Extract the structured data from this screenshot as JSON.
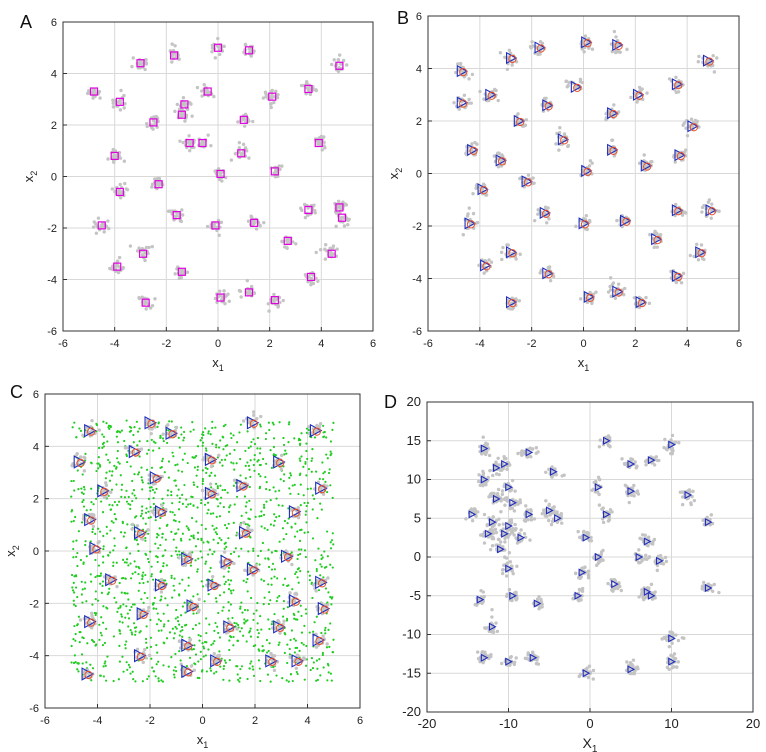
{
  "figure": {
    "panels": [
      {
        "letter": "A"
      },
      {
        "letter": "B"
      },
      {
        "letter": "C"
      },
      {
        "letter": "D"
      }
    ]
  },
  "colors": {
    "cloud": "#c4c4c4",
    "grid": "#d9d9d9",
    "square": "#e000e0",
    "triangle": "#1f2dbf",
    "circle": "#e8502a",
    "uniform": "#22cc22"
  },
  "chart_data": [
    {
      "type": "scatter",
      "panel": "A",
      "xlabel": "x1",
      "ylabel": "x2",
      "xlim": [
        -6,
        6
      ],
      "ylim": [
        -6,
        6
      ],
      "xticks": [
        -6,
        -4,
        -2,
        0,
        2,
        4,
        6
      ],
      "yticks": [
        -6,
        -4,
        -2,
        0,
        2,
        4,
        6
      ],
      "grid": true,
      "centers": [
        [
          -4.8,
          3.3
        ],
        [
          -3,
          4.4
        ],
        [
          -1.7,
          4.7
        ],
        [
          0,
          5
        ],
        [
          1.2,
          4.9
        ],
        [
          4.7,
          4.3
        ],
        [
          -3.8,
          2.9
        ],
        [
          -1.3,
          2.8
        ],
        [
          -0.4,
          3.3
        ],
        [
          2.1,
          3.1
        ],
        [
          3.5,
          3.4
        ],
        [
          -2.5,
          2.1
        ],
        [
          -1.4,
          2.4
        ],
        [
          1.0,
          2.2
        ],
        [
          -4.0,
          0.8
        ],
        [
          -1.1,
          1.3
        ],
        [
          -0.6,
          1.3
        ],
        [
          0.9,
          0.9
        ],
        [
          3.9,
          1.3
        ],
        [
          -3.8,
          -0.6
        ],
        [
          -2.3,
          -0.3
        ],
        [
          0.1,
          0.1
        ],
        [
          2.2,
          0.2
        ],
        [
          -1.6,
          -1.5
        ],
        [
          -0.1,
          -1.9
        ],
        [
          1.4,
          -1.8
        ],
        [
          3.5,
          -1.3
        ],
        [
          -4.5,
          -1.9
        ],
        [
          2.7,
          -2.5
        ],
        [
          4.8,
          -1.6
        ],
        [
          4.7,
          -1.2
        ],
        [
          -3.9,
          -3.5
        ],
        [
          -2.9,
          -3
        ],
        [
          -1.4,
          -3.7
        ],
        [
          3.6,
          -3.9
        ],
        [
          4.4,
          -3
        ],
        [
          -2.8,
          -4.9
        ],
        [
          0.1,
          -4.7
        ],
        [
          1.2,
          -4.5
        ],
        [
          2.2,
          -4.8
        ]
      ],
      "markers": [
        {
          "shape": "square",
          "positions": "centers"
        }
      ]
    },
    {
      "type": "scatter",
      "panel": "B",
      "xlabel": "x1",
      "ylabel": "x2",
      "xlim": [
        -6,
        6
      ],
      "ylim": [
        -6,
        6
      ],
      "xticks": [
        -6,
        -4,
        -2,
        0,
        2,
        4,
        6
      ],
      "yticks": [
        -6,
        -4,
        -2,
        0,
        2,
        4,
        6
      ],
      "grid": true,
      "centers": [
        [
          -4.7,
          3.9
        ],
        [
          -2.8,
          4.4
        ],
        [
          -1.7,
          4.8
        ],
        [
          0.1,
          5
        ],
        [
          1.3,
          4.9
        ],
        [
          4.8,
          4.3
        ],
        [
          -4.7,
          2.7
        ],
        [
          -3.6,
          3.0
        ],
        [
          -1.4,
          2.6
        ],
        [
          -0.3,
          3.3
        ],
        [
          2.1,
          3.0
        ],
        [
          3.6,
          3.4
        ],
        [
          -2.5,
          2.0
        ],
        [
          1.1,
          2.3
        ],
        [
          -4.3,
          0.9
        ],
        [
          -3.2,
          0.5
        ],
        [
          -0.8,
          1.3
        ],
        [
          1.1,
          0.9
        ],
        [
          4.2,
          1.8
        ],
        [
          -3.9,
          -0.6
        ],
        [
          -2.2,
          -0.3
        ],
        [
          0.1,
          0.1
        ],
        [
          2.4,
          0.3
        ],
        [
          3.7,
          0.7
        ],
        [
          -1.5,
          -1.5
        ],
        [
          0.0,
          -1.9
        ],
        [
          1.6,
          -1.8
        ],
        [
          3.6,
          -1.4
        ],
        [
          4.9,
          -1.4
        ],
        [
          -4.4,
          -1.9
        ],
        [
          2.8,
          -2.5
        ],
        [
          -3.8,
          -3.5
        ],
        [
          -2.8,
          -3.0
        ],
        [
          -1.4,
          -3.8
        ],
        [
          3.6,
          -3.9
        ],
        [
          4.5,
          -3.0
        ],
        [
          -2.8,
          -4.9
        ],
        [
          0.2,
          -4.7
        ],
        [
          1.3,
          -4.5
        ],
        [
          2.2,
          -4.9
        ]
      ],
      "markers": [
        {
          "shape": "triangle",
          "positions": "centers"
        },
        {
          "shape": "circle",
          "positions": "centers"
        }
      ]
    },
    {
      "type": "scatter",
      "panel": "C",
      "xlabel": "x1",
      "ylabel": "x2",
      "xlim": [
        -6,
        6
      ],
      "ylim": [
        -6,
        6
      ],
      "xticks": [
        -6,
        -4,
        -2,
        0,
        2,
        4,
        6
      ],
      "yticks": [
        -6,
        -4,
        -2,
        0,
        2,
        4,
        6
      ],
      "grid": true,
      "uniform_range": [
        -5,
        5
      ],
      "centers": [
        [
          -4.3,
          4.6
        ],
        [
          -2,
          4.9
        ],
        [
          -1.2,
          4.5
        ],
        [
          1.9,
          4.9
        ],
        [
          4.3,
          4.6
        ],
        [
          -4.7,
          3.4
        ],
        [
          -2.6,
          3.8
        ],
        [
          0.3,
          3.5
        ],
        [
          2.9,
          3.4
        ],
        [
          -3.8,
          2.3
        ],
        [
          -1.8,
          2.8
        ],
        [
          0.3,
          2.2
        ],
        [
          1.5,
          2.5
        ],
        [
          4.5,
          2.4
        ],
        [
          -4.3,
          1.2
        ],
        [
          -1.6,
          1.5
        ],
        [
          3.5,
          1.5
        ],
        [
          -2.4,
          0.7
        ],
        [
          1.6,
          0.7
        ],
        [
          -4.1,
          0.1
        ],
        [
          -0.6,
          -0.3
        ],
        [
          0.9,
          -0.4
        ],
        [
          3.2,
          -0.2
        ],
        [
          -3.5,
          -1.1
        ],
        [
          -1.6,
          -1.3
        ],
        [
          0.4,
          -1.3
        ],
        [
          1.9,
          -0.7
        ],
        [
          4.5,
          -1.2
        ],
        [
          -2.3,
          -2.4
        ],
        [
          -0.4,
          -2.1
        ],
        [
          3.5,
          -1.9
        ],
        [
          4.6,
          -2.2
        ],
        [
          -4.3,
          -2.7
        ],
        [
          1.0,
          -2.9
        ],
        [
          2.9,
          -2.9
        ],
        [
          -0.6,
          -3.6
        ],
        [
          4.4,
          -3.4
        ],
        [
          -4.4,
          -4.7
        ],
        [
          -0.6,
          -4.6
        ],
        [
          0.5,
          -4.2
        ],
        [
          2.6,
          -4.2
        ],
        [
          3.6,
          -4.2
        ],
        [
          -2.4,
          -4.0
        ]
      ],
      "markers": [
        {
          "shape": "triangle",
          "positions": "centers"
        },
        {
          "shape": "circle",
          "positions": "centers"
        }
      ]
    },
    {
      "type": "scatter",
      "panel": "D",
      "xlabel": "X1",
      "ylabel": "",
      "xlim": [
        -20,
        20
      ],
      "ylim": [
        -20,
        20
      ],
      "xticks": [
        -20,
        -10,
        0,
        10,
        20
      ],
      "yticks": [
        -20,
        -15,
        -10,
        -5,
        0,
        5,
        10,
        15,
        20
      ],
      "grid": true,
      "centers": [
        [
          -13,
          14
        ],
        [
          -11.5,
          11.5
        ],
        [
          -10.5,
          12
        ],
        [
          -7.5,
          13.5
        ],
        [
          2,
          15
        ],
        [
          10,
          14.5
        ],
        [
          -13,
          10
        ],
        [
          -10,
          9
        ],
        [
          -4.5,
          11
        ],
        [
          5,
          12
        ],
        [
          7.5,
          12.5
        ],
        [
          -11.5,
          7.5
        ],
        [
          -9.5,
          7
        ],
        [
          -5,
          6
        ],
        [
          1,
          9
        ],
        [
          5,
          8.5
        ],
        [
          -14.5,
          5.5
        ],
        [
          -12,
          4.5
        ],
        [
          -10,
          4
        ],
        [
          -7.5,
          5.5
        ],
        [
          -4,
          5
        ],
        [
          2,
          5.5
        ],
        [
          -12.5,
          3
        ],
        [
          -10.5,
          3
        ],
        [
          -8.5,
          2.5
        ],
        [
          -0.5,
          2.5
        ],
        [
          7,
          2
        ],
        [
          14.5,
          4.5
        ],
        [
          12,
          8
        ],
        [
          -11,
          1
        ],
        [
          -10,
          -1.5
        ],
        [
          1,
          0
        ],
        [
          6,
          0
        ],
        [
          8.5,
          -0.5
        ],
        [
          -1,
          -2
        ],
        [
          3,
          -3.5
        ],
        [
          7,
          -4.5
        ],
        [
          7.5,
          -5
        ],
        [
          14.5,
          -4
        ],
        [
          -13.5,
          -5.5
        ],
        [
          -9.5,
          -5
        ],
        [
          -6.5,
          -6
        ],
        [
          -1.5,
          -5
        ],
        [
          -12,
          -9
        ],
        [
          10,
          -10.5
        ],
        [
          -13,
          -13
        ],
        [
          -10,
          -13.5
        ],
        [
          -7,
          -13
        ],
        [
          5,
          -14.5
        ],
        [
          10,
          -13.5
        ],
        [
          -0.5,
          -15
        ]
      ],
      "markers": [
        {
          "shape": "triangle",
          "positions": "centers"
        }
      ]
    }
  ]
}
